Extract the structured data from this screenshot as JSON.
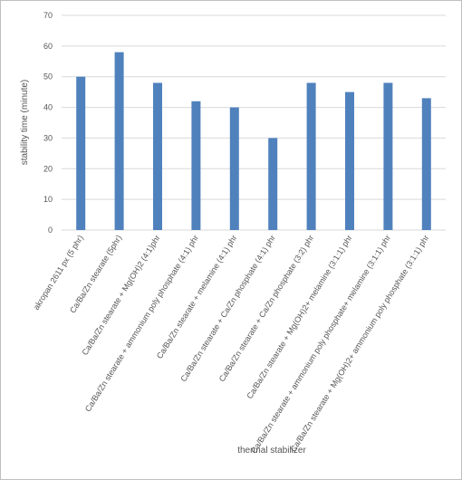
{
  "chart_data": {
    "type": "bar",
    "x_label": "thermal stabilizer",
    "y_label": "stability time (minute)",
    "categories": [
      "akropan 2611 px (5 phr)",
      "Ca/Ba/Zn stearate (5phr)",
      "Ca/Ba/Zn stearate + Mg(OH)2 (4:1)phr",
      "Ca/Ba/Zn stearate + ammonium poly phosphate (4:1) phr",
      "Ca/Ba/Zn stearate + melamine (4:1) phr",
      "Ca/Ba/Zn stearate + Ca/Zn phosphate (4:1) phr",
      "Ca/Ba/Zn stearate + Ca/Zn phosphate (3:2) phr",
      "Ca/Ba/Zn stearate + Mg(OH)2+ melamine (3:1:1) phr",
      "Ca/Ba/Zn stearate + ammonium poly phosphate+ melamine (3:1:1) phr",
      "Ca/Ba/Zn stearate + Mg(OH)2+ ammonium poly phosphate (3:1:1) phr"
    ],
    "values": [
      50,
      58,
      48,
      42,
      40,
      30,
      48,
      45,
      48,
      43
    ],
    "color": "#4f81bd",
    "ylim": [
      0,
      70
    ],
    "yticks": [
      0,
      10,
      20,
      30,
      40,
      50,
      60,
      70
    ],
    "grid": true
  }
}
